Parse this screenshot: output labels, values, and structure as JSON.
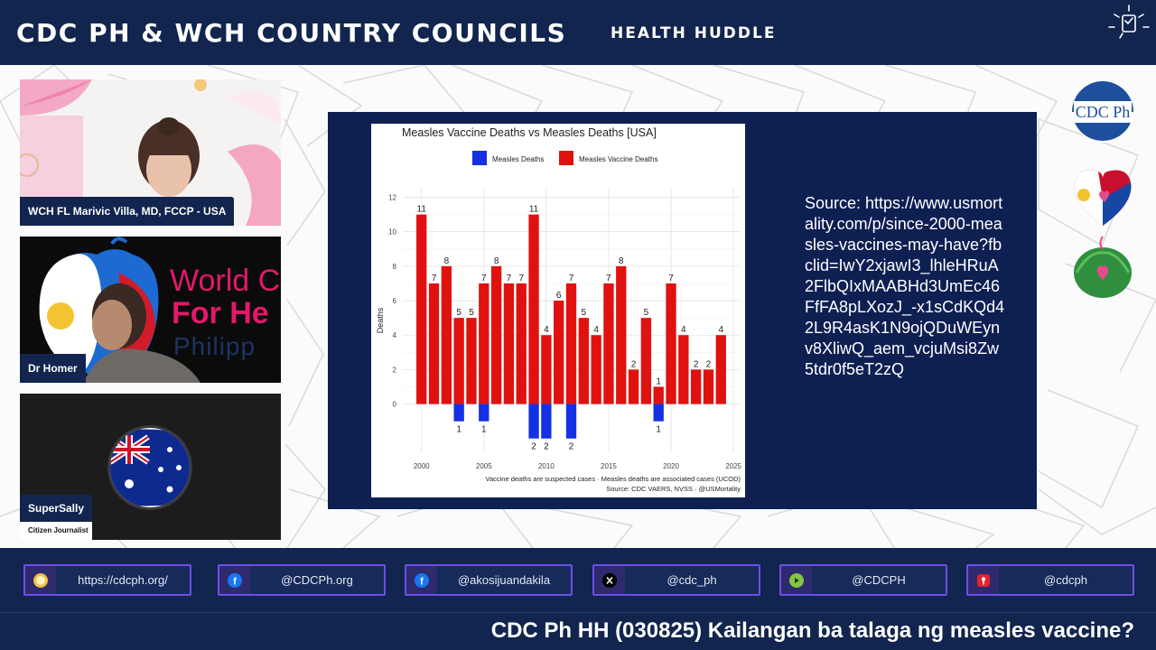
{
  "header": {
    "title": "CDC PH & WCH COUNTRY COUNCILS",
    "subtitle": "HEALTH HUDDLE"
  },
  "participants": [
    {
      "name": "WCH FL Marivic Villa, MD, FCCP - USA"
    },
    {
      "name": "Dr Homer",
      "background_text": [
        "World C",
        "For He",
        "Philipp"
      ]
    },
    {
      "name": "SuperSally",
      "role": "Citizen Journalist"
    }
  ],
  "slide": {
    "source": "Source: https://www.usmortality.com/p/since-2000-measles-vaccines-may-have?fbclid=IwY2xjawI3_lhleHRuA2FlbQIxMAABHd3UmEc46FfFA8pLXozJ_-x1sCdKQd42L9R4asK1N9ojQDuWEynv8XliwQ_aem_vcjuMsi8Zw5tdr0f5eT2zQ"
  },
  "right_logos": {
    "cdc_text": "CDC Ph"
  },
  "social_links": [
    {
      "icon": "globe-icon",
      "text": "https://cdcph.org/"
    },
    {
      "icon": "facebook-icon",
      "text": "@CDCPh.org"
    },
    {
      "icon": "facebook-icon",
      "text": "@akosijuandakila"
    },
    {
      "icon": "x-icon",
      "text": "@cdc_ph"
    },
    {
      "icon": "rumble-icon",
      "text": "@CDCPH"
    },
    {
      "icon": "odysee-icon",
      "text": "@cdcph"
    }
  ],
  "ticker": "CDC Ph HH (030825) Kailangan ba talaga ng measles vaccine?",
  "colors": {
    "navy": "#12254f",
    "slide_bg": "#0e1f52",
    "vaccine_red": "#e0120f",
    "measles_blue": "#1430e3",
    "accent_purple": "#6b4fe6"
  },
  "chart_data": {
    "type": "bar",
    "title": "Measles Vaccine Deaths vs Measles Deaths [USA]",
    "ylabel": "Deaths",
    "xlabel": "",
    "caption": "Vaccine deaths are suspected cases · Measles deaths are associated cases (UCOD)",
    "source": "Source: CDC VAERS, NVSS · @USMortality",
    "legend": "top",
    "xlim": [
      1998.5,
      2025.5
    ],
    "ylim": [
      -2.8,
      12.5
    ],
    "xticks": [
      2000,
      2005,
      2010,
      2015,
      2020,
      2025
    ],
    "yticks": [
      0,
      2,
      4,
      6,
      8,
      10,
      12
    ],
    "grid": true,
    "series": [
      {
        "name": "Measles Deaths",
        "color": "#1430e3",
        "x": [
          2003,
          2005,
          2009,
          2010,
          2012,
          2019
        ],
        "values": [
          1,
          1,
          2,
          2,
          2,
          1
        ]
      },
      {
        "name": "Measles Vaccine Deaths",
        "color": "#e0120f",
        "x": [
          2000,
          2001,
          2002,
          2003,
          2004,
          2005,
          2006,
          2007,
          2008,
          2009,
          2010,
          2011,
          2012,
          2013,
          2014,
          2015,
          2016,
          2017,
          2018,
          2019,
          2020,
          2021,
          2022,
          2023,
          2024
        ],
        "values": [
          11,
          7,
          8,
          5,
          5,
          7,
          8,
          7,
          7,
          11,
          4,
          6,
          7,
          5,
          4,
          7,
          8,
          2,
          5,
          1,
          7,
          4,
          2,
          2,
          4
        ]
      }
    ]
  }
}
